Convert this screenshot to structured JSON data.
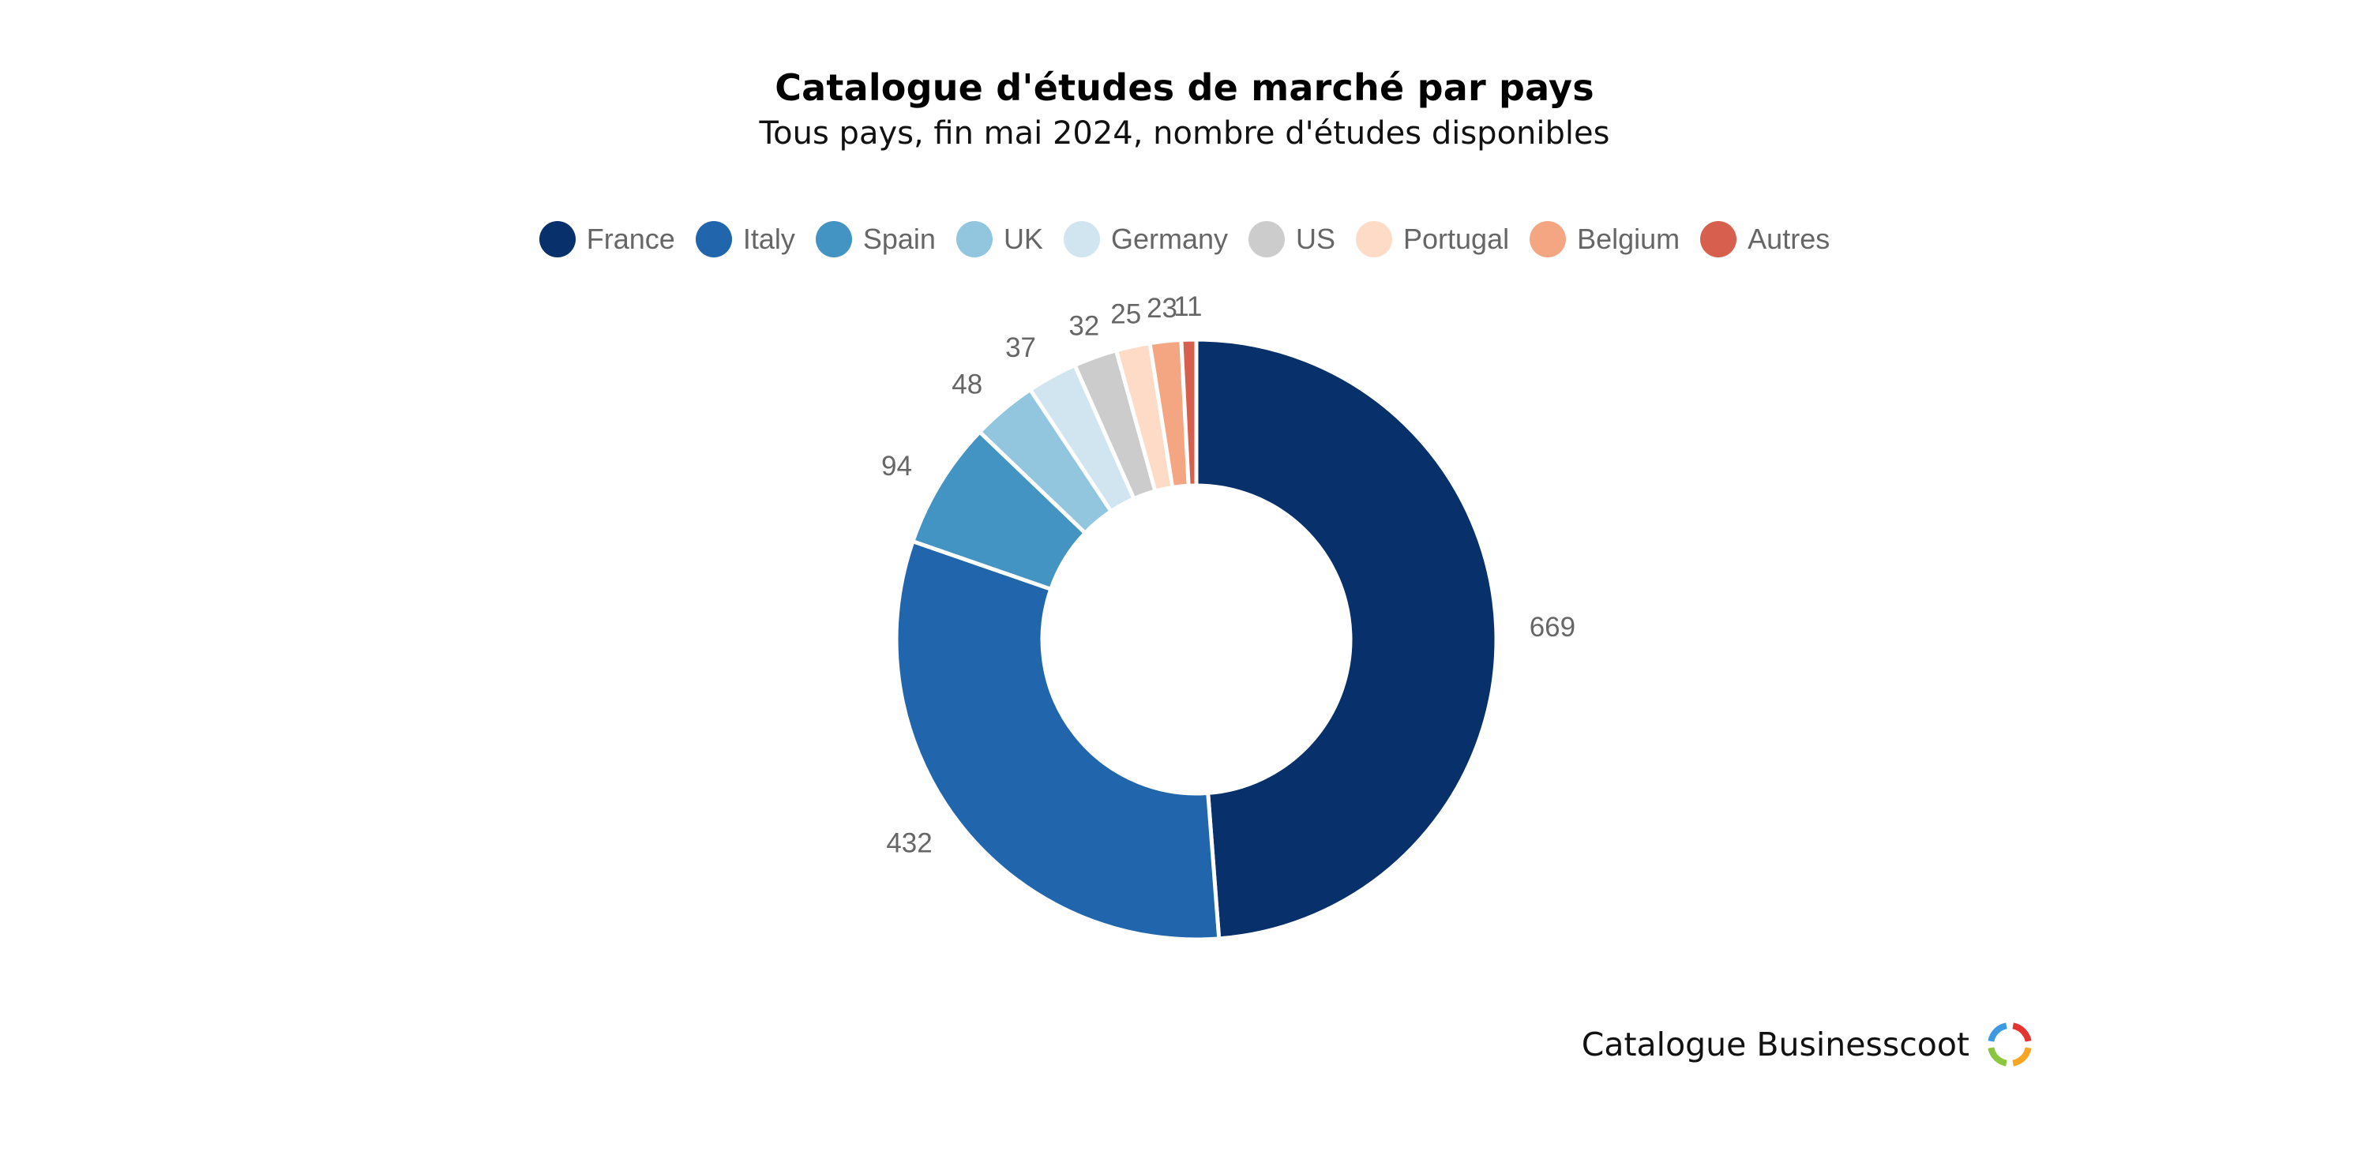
{
  "chart_data": {
    "type": "pie",
    "variant": "donut",
    "title": "Catalogue d'études de marché par pays",
    "subtitle": "Tous pays, fin mai 2024, nombre d'études disponibles",
    "legend_position": "top",
    "categories": [
      "France",
      "Italy",
      "Spain",
      "UK",
      "Germany",
      "US",
      "Portugal",
      "Belgium",
      "Autres"
    ],
    "values": [
      669,
      432,
      94,
      48,
      37,
      32,
      25,
      23,
      11
    ],
    "data_labels": [
      "669",
      "432",
      "94",
      "48",
      "37",
      "32",
      "25",
      "23",
      "11"
    ],
    "colors": [
      "#08306b",
      "#2166ac",
      "#4393c3",
      "#92c5de",
      "#d1e5f0",
      "#cccccc",
      "#fddbc7",
      "#f4a582",
      "#d6604d"
    ]
  },
  "branding": {
    "text": "Catalogue Businesscoot",
    "logo_icon": "businesscoot-logo-ring",
    "logo_colors": [
      "#e3342f",
      "#f6a623",
      "#8cc63f",
      "#3b9ae1"
    ]
  }
}
